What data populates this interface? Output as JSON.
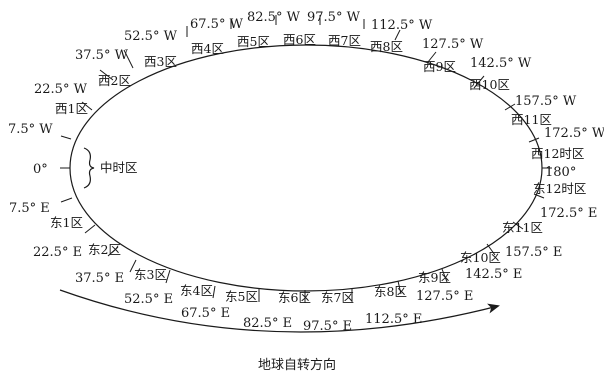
{
  "diagram": {
    "caption": "地球自转方向",
    "center_meridian": "0°",
    "center_zone": "中时区",
    "date_line": "180°",
    "west": {
      "meridians": [
        "7.5° W",
        "22.5° W",
        "37.5° W",
        "52.5° W",
        "67.5° W",
        "82.5° W",
        "97.5° W",
        "112.5° W",
        "127.5° W",
        "142.5° W",
        "157.5° W",
        "172.5° W"
      ],
      "zones": [
        "西1区",
        "西2区",
        "西3区",
        "西4区",
        "西5区",
        "西6区",
        "西7区",
        "西8区",
        "西9区",
        "西10区",
        "西11区",
        "西12时区"
      ]
    },
    "east": {
      "meridians": [
        "7.5° E",
        "22.5° E",
        "37.5° E",
        "52.5° E",
        "67.5° E",
        "82.5° E",
        "97.5° E",
        "112.5° E",
        "127.5° E",
        "142.5° E",
        "157.5° E",
        "172.5° E"
      ],
      "zones": [
        "东1区",
        "东2区",
        "东3区",
        "东4区",
        "东5区",
        "东6区",
        "东7区",
        "东8区",
        "东9区",
        "东10区",
        "东11区",
        "东12时区"
      ]
    }
  }
}
